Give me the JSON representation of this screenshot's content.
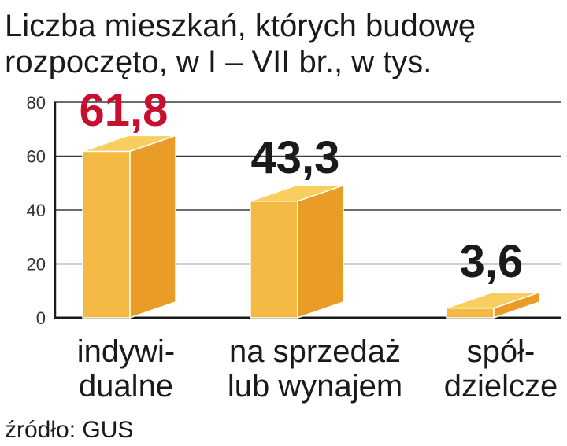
{
  "colors": {
    "bar_front": "#F4B942",
    "bar_side": "#E99D26",
    "bar_top": "#F8CE5E",
    "highlight": "#C8102E",
    "text": "#1a1a1a"
  },
  "chart_data": {
    "type": "bar",
    "title": [
      "Liczba mieszkań, których budowę",
      "rozpoczęto, w I – VII br., w tys."
    ],
    "categories": [
      [
        "indywi-",
        "dualne"
      ],
      [
        "na sprzedaż",
        "lub wynajem"
      ],
      [
        "spół-",
        "dzielcze"
      ]
    ],
    "values": [
      61.8,
      43.3,
      3.6
    ],
    "value_labels": [
      "61,8",
      "43,3",
      "3,6"
    ],
    "highlight_index": 0,
    "yticks": [
      "0",
      "20",
      "40",
      "60",
      "80"
    ],
    "ylim": [
      0,
      80
    ],
    "grid": true
  },
  "source": "źródło: GUS"
}
